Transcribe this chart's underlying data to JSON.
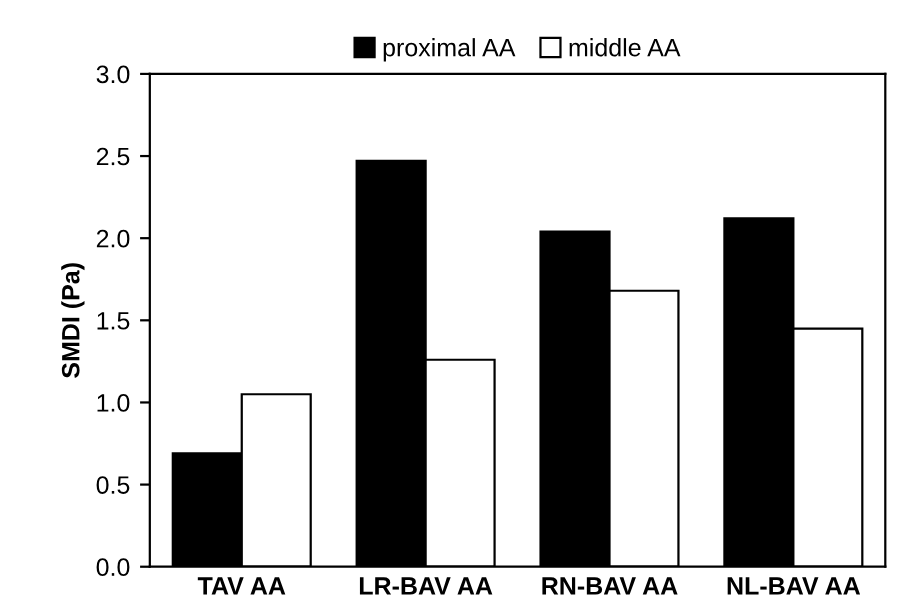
{
  "chart_data": {
    "type": "bar",
    "ylabel": "SMDI (Pa)",
    "categories": [
      "TAV AA",
      "LR-BAV AA",
      "RN-BAV AA",
      "NL-BAV AA"
    ],
    "series": [
      {
        "name": "proximal AA",
        "color": "#000000",
        "values": [
          0.69,
          2.47,
          2.04,
          2.12
        ]
      },
      {
        "name": "middle AA",
        "color": "#ffffff",
        "values": [
          1.05,
          1.26,
          1.68,
          1.45
        ]
      }
    ],
    "ylim": [
      0,
      3
    ],
    "yticks": [
      {
        "value": 0,
        "label": "0.0"
      },
      {
        "value": 0.5,
        "label": "0.5"
      },
      {
        "value": 1,
        "label": "1.0"
      },
      {
        "value": 1.5,
        "label": "1.5"
      },
      {
        "value": 2,
        "label": "2.0"
      },
      {
        "value": 2.5,
        "label": "2.5"
      },
      {
        "value": 3,
        "label": "3.0"
      }
    ],
    "grid": false,
    "legend": "top"
  }
}
